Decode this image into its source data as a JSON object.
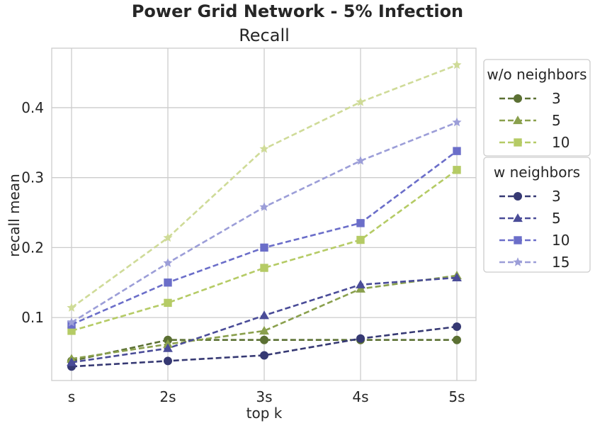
{
  "chart_data": {
    "type": "line",
    "title": "Power Grid Network - 5% Infection",
    "subtitle": "Recall",
    "xlabel": "top k",
    "ylabel": "recall mean",
    "categories": [
      "s",
      "2s",
      "3s",
      "4s",
      "5s"
    ],
    "ylim": [
      0.01,
      0.485
    ],
    "yticks": [
      0.1,
      0.2,
      0.3,
      0.4
    ],
    "ytick_labels": [
      "0.1",
      "0.2",
      "0.3",
      "0.4"
    ],
    "grid": true,
    "legend_placement": "outside-right",
    "legend_groups": [
      {
        "title": "w/o neighbors",
        "series_indices": [
          0,
          1,
          2,
          3
        ]
      },
      {
        "title": "w neighbors",
        "series_indices": [
          4,
          5,
          6,
          7
        ]
      }
    ],
    "series": [
      {
        "name": "3",
        "group": "w/o neighbors",
        "marker": "circle",
        "color": "#5b7033",
        "values": [
          0.038,
          0.068,
          0.068,
          0.068,
          0.068
        ]
      },
      {
        "name": "5",
        "group": "w/o neighbors",
        "marker": "triangle",
        "color": "#8aa04d",
        "values": [
          0.041,
          0.062,
          0.081,
          0.141,
          0.16
        ]
      },
      {
        "name": "10",
        "group": "w/o neighbors",
        "marker": "square",
        "color": "#b5cb65",
        "values": [
          0.081,
          0.121,
          0.171,
          0.211,
          0.311
        ]
      },
      {
        "name": "15",
        "group": "w/o neighbors",
        "marker": "star",
        "color": "#cfdb98",
        "values": [
          0.114,
          0.214,
          0.341,
          0.408,
          0.461
        ]
      },
      {
        "name": "3",
        "group": "w neighbors",
        "marker": "circle",
        "color": "#363973",
        "values": [
          0.03,
          0.038,
          0.046,
          0.07,
          0.087
        ]
      },
      {
        "name": "5",
        "group": "w neighbors",
        "marker": "triangle",
        "color": "#4a4c98",
        "values": [
          0.036,
          0.056,
          0.103,
          0.147,
          0.157
        ]
      },
      {
        "name": "10",
        "group": "w neighbors",
        "marker": "square",
        "color": "#6b6ec9",
        "values": [
          0.09,
          0.15,
          0.2,
          0.235,
          0.338
        ]
      },
      {
        "name": "15",
        "group": "w neighbors",
        "marker": "star",
        "color": "#9c9ed8",
        "values": [
          0.093,
          0.178,
          0.258,
          0.324,
          0.379
        ]
      }
    ]
  }
}
